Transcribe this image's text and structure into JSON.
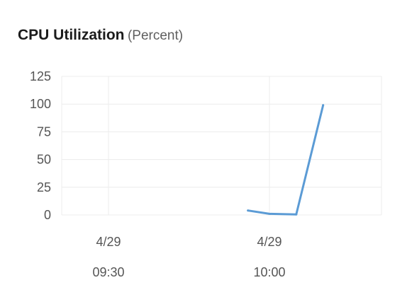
{
  "chart_data": {
    "type": "line",
    "title": "CPU Utilization",
    "unit": "(Percent)",
    "y_ticks": [
      "0",
      "25",
      "50",
      "75",
      "100",
      "125"
    ],
    "ylim": [
      0,
      125
    ],
    "x_ticks": [
      {
        "date": "4/29",
        "time": "09:30"
      },
      {
        "date": "4/29",
        "time": "10:00"
      }
    ],
    "x": [
      "09:56",
      "10:00",
      "10:05",
      "10:10"
    ],
    "series": [
      {
        "values": [
          4,
          1,
          0.5,
          99
        ],
        "color": "#5b9bd5"
      }
    ],
    "grid": true
  }
}
